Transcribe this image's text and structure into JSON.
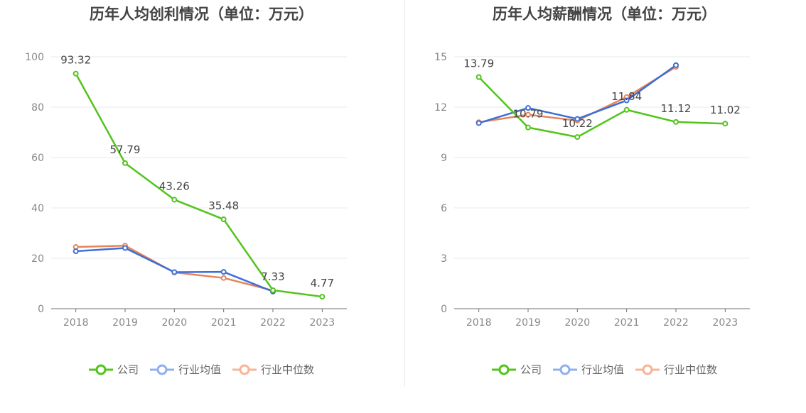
{
  "charts": [
    {
      "title": "历年人均创利情况（单位：万元）",
      "legend": [
        "公司",
        "行业均值",
        "行业中位数"
      ]
    },
    {
      "title": "历年人均薪酬情况（单位：万元）",
      "legend": [
        "公司",
        "行业均值",
        "行业中位数"
      ]
    }
  ],
  "colors": {
    "company": "#52c41a",
    "industry_avg": "#3a6fd8",
    "industry_median": "#e8825a",
    "legend_avg": "#8fb0ee",
    "legend_median": "#f6b49a"
  },
  "chart_data": [
    {
      "type": "line",
      "title": "历年人均创利情况（单位：万元）",
      "categories": [
        "2018",
        "2019",
        "2020",
        "2021",
        "2022",
        "2023"
      ],
      "ylim": [
        0,
        100
      ],
      "yticks": [
        0,
        20,
        40,
        60,
        80,
        100
      ],
      "grid": true,
      "legend_position": "bottom",
      "series": [
        {
          "name": "公司",
          "values": [
            93.32,
            57.79,
            43.26,
            35.48,
            7.33,
            4.77
          ],
          "labels": [
            "93.32",
            "57.79",
            "43.26",
            "35.48",
            "7.33",
            "4.77"
          ]
        },
        {
          "name": "行业均值",
          "values": [
            22.8,
            24.1,
            14.5,
            14.6,
            6.8,
            null
          ]
        },
        {
          "name": "行业中位数",
          "values": [
            24.5,
            25.0,
            14.4,
            12.2,
            7.2,
            null
          ]
        }
      ]
    },
    {
      "type": "line",
      "title": "历年人均薪酬情况（单位：万元）",
      "categories": [
        "2018",
        "2019",
        "2020",
        "2021",
        "2022",
        "2023"
      ],
      "ylim": [
        0,
        15
      ],
      "yticks": [
        0,
        3,
        6,
        9,
        12,
        15
      ],
      "grid": true,
      "legend_position": "bottom",
      "series": [
        {
          "name": "公司",
          "values": [
            13.79,
            10.79,
            10.22,
            11.84,
            11.12,
            11.02
          ],
          "labels": [
            "13.79",
            "10.79",
            "10.22",
            "11.84",
            "11.12",
            "11.02"
          ]
        },
        {
          "name": "行业均值",
          "values": [
            11.05,
            11.95,
            11.3,
            12.4,
            14.5,
            null
          ]
        },
        {
          "name": "行业中位数",
          "values": [
            11.1,
            11.55,
            11.2,
            12.6,
            14.4,
            null
          ]
        }
      ]
    }
  ]
}
